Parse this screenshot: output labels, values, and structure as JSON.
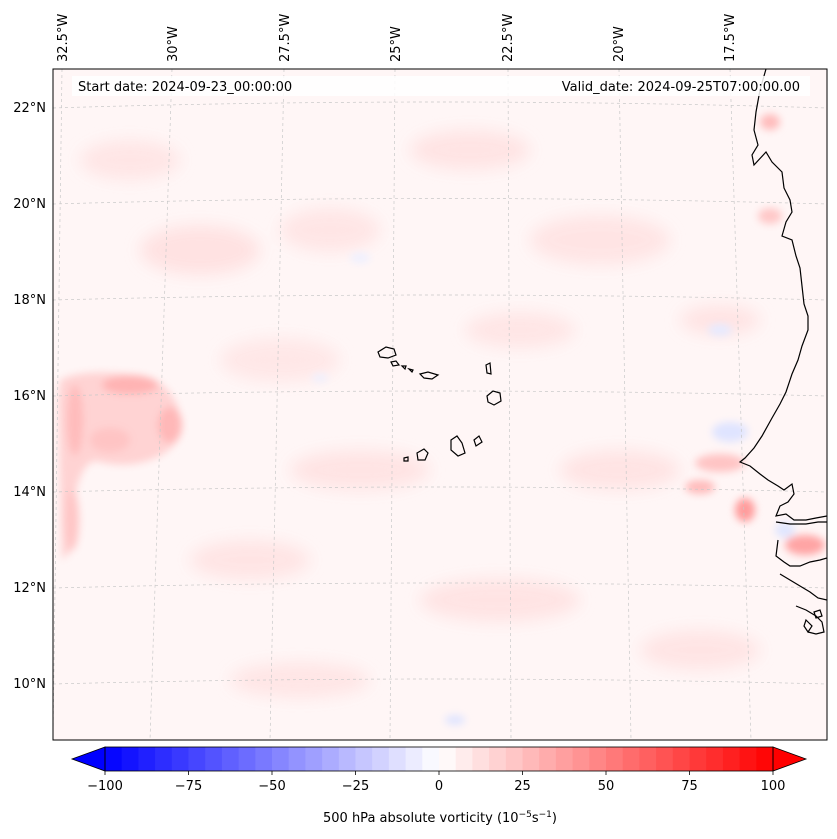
{
  "header": {
    "start_date": "Start date: 2024-09-23_00:00:00",
    "valid_date": "Valid_date: 2024-09-25T07:00:00.00"
  },
  "longitude_labels": [
    "32.5°W",
    "30°W",
    "27.5°W",
    "25°W",
    "22.5°W",
    "20°W",
    "17.5°W"
  ],
  "latitude_labels": [
    "22°N",
    "20°N",
    "18°N",
    "16°N",
    "14°N",
    "12°N",
    "10°N"
  ],
  "colorbar": {
    "label_prefix": "500 hPa absolute vorticity (10",
    "label_exp1": "−5",
    "label_mid": "s",
    "label_exp2": "−1",
    "label_suffix": ")",
    "ticks": [
      "−100",
      "−75",
      "−50",
      "−25",
      "0",
      "25",
      "50",
      "75",
      "100"
    ],
    "min": -100,
    "max": 100,
    "colors": {
      "negative": "#0000ff",
      "neutral": "#ffffff",
      "positive": "#ff0000"
    }
  },
  "map": {
    "background": "#fff7f7",
    "gridline_color": "#bbbbbb",
    "coastline_color": "#000000",
    "islands": "Cabo Verde",
    "coast": "West Africa"
  }
}
